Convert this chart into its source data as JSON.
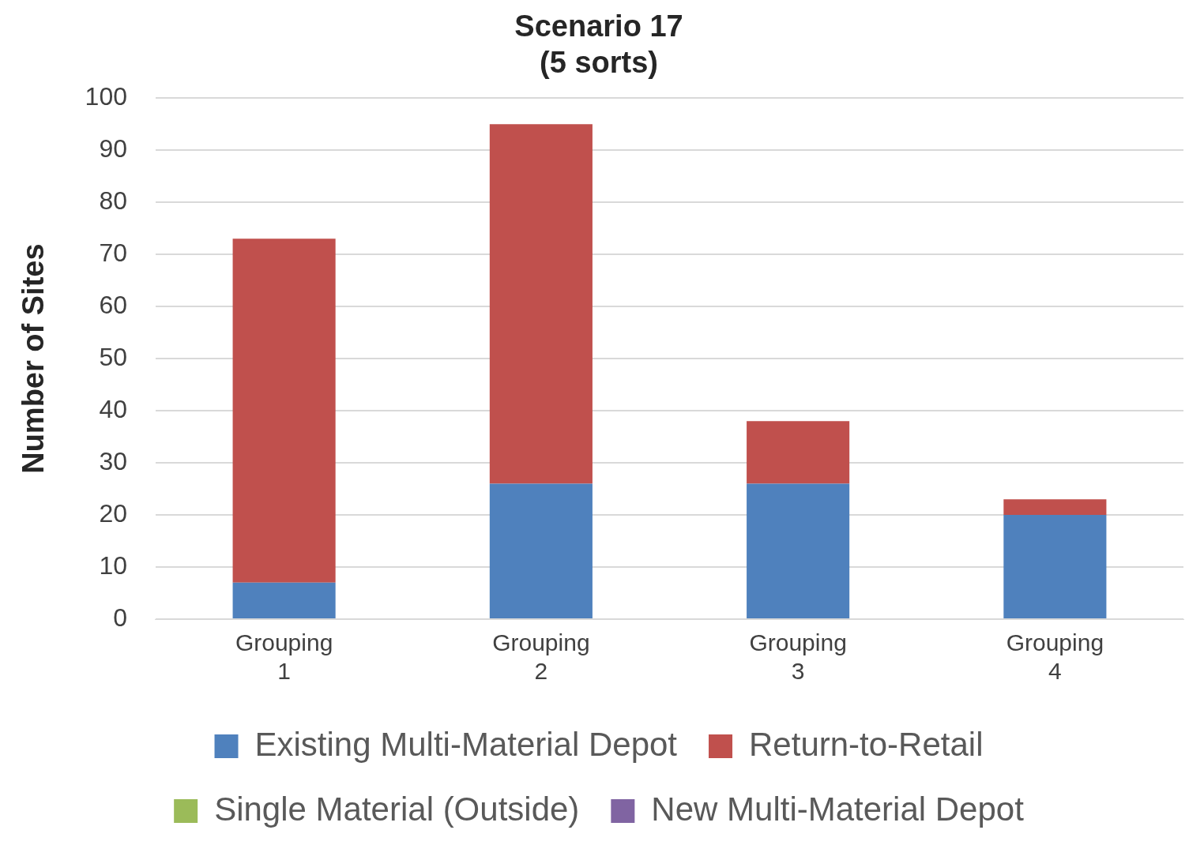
{
  "chart_data": {
    "type": "bar",
    "title": "Scenario 17\n(5 sorts)",
    "ylabel": "Number of Sites",
    "categories": [
      "Grouping 1",
      "Grouping 2",
      "Grouping 3",
      "Grouping 4"
    ],
    "stacked": true,
    "series": [
      {
        "name": "Existing Multi-Material Depot",
        "color": "#4f81bd",
        "values": [
          7,
          26,
          26,
          20
        ]
      },
      {
        "name": "Return-to-Retail",
        "color": "#c0504d",
        "values": [
          66,
          69,
          12,
          3
        ]
      },
      {
        "name": "Single Material (Outside)",
        "color": "#9bbb59",
        "values": [
          0,
          0,
          0,
          0
        ]
      },
      {
        "name": "New Multi-Material Depot",
        "color": "#8064a2",
        "values": [
          0,
          0,
          0,
          0
        ]
      }
    ],
    "ylim": [
      0,
      100
    ],
    "yticks": [
      0,
      10,
      20,
      30,
      40,
      50,
      60,
      70,
      80,
      90,
      100
    ],
    "grid": "y",
    "legend": "bottom"
  }
}
